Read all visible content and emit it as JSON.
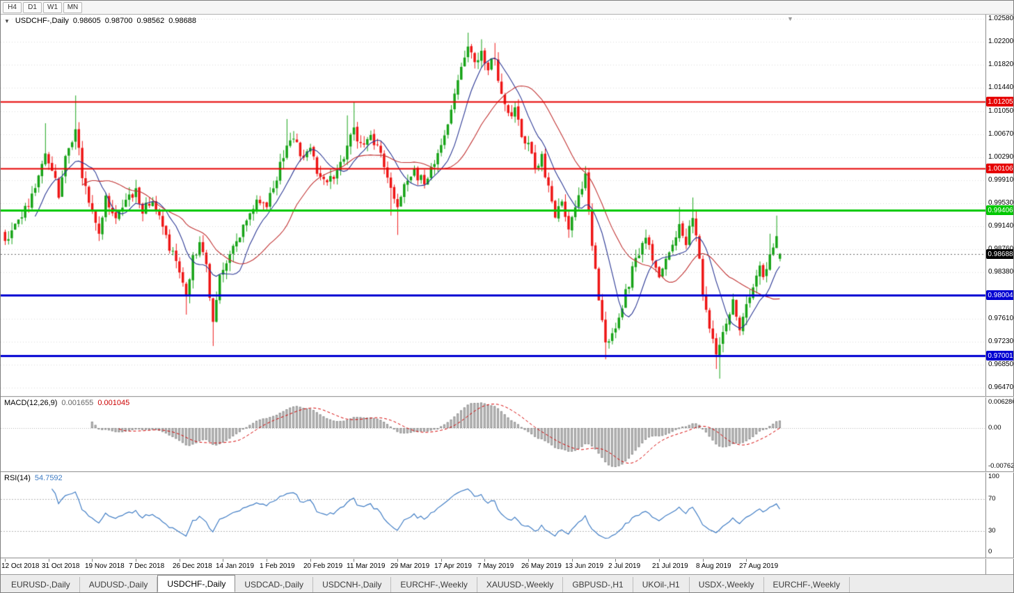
{
  "toolbar": {
    "timeframes": [
      "H4",
      "D1",
      "W1",
      "MN"
    ]
  },
  "chart": {
    "symbol_period": "USDCHF-,Daily",
    "open": "0.98605",
    "high": "0.98700",
    "low": "0.98562",
    "close": "0.98688"
  },
  "indicators": {
    "macd": {
      "name": "MACD(12,26,9)",
      "main_value": "0.001655",
      "signal_value": "0.001045",
      "axis_top": "0.006286",
      "axis_zero": "0.00",
      "axis_bottom": "-0.007620"
    },
    "rsi": {
      "name": "RSI(14)",
      "value": "54.7592",
      "axis_top": "100",
      "axis_upper": "70",
      "axis_lower": "30",
      "axis_bottom": "0"
    }
  },
  "price_axis": {
    "ticks": [
      "1.02580",
      "1.02200",
      "1.01820",
      "1.01440",
      "1.01050",
      "1.00670",
      "1.00290",
      "0.99910",
      "0.99530",
      "0.99140",
      "0.98760",
      "0.98380",
      "0.97990",
      "0.97610",
      "0.97230",
      "0.96850",
      "0.96470"
    ]
  },
  "date_axis": {
    "bars_per_label": 13,
    "labels": [
      "12 Oct 2018",
      "31 Oct 2018",
      "19 Nov 2018",
      "7 Dec 2018",
      "26 Dec 2018",
      "14 Jan 2019",
      "1 Feb 2019",
      "20 Feb 2019",
      "11 Mar 2019",
      "29 Mar 2019",
      "17 Apr 2019",
      "7 May 2019",
      "26 May 2019",
      "13 Jun 2019",
      "2 Jul 2019",
      "21 Jul 2019",
      "8 Aug 2019",
      "27 Aug 2019"
    ]
  },
  "tab_bar": {
    "tabs": [
      {
        "label": "EURUSD-,Daily",
        "active": false
      },
      {
        "label": "AUDUSD-,Daily",
        "active": false
      },
      {
        "label": "USDCHF-,Daily",
        "active": true
      },
      {
        "label": "USDCAD-,Daily",
        "active": false
      },
      {
        "label": "USDCNH-,Daily",
        "active": false
      },
      {
        "label": "EURCHF-,Weekly",
        "active": false
      },
      {
        "label": "XAUUSD-,Weekly",
        "active": false
      },
      {
        "label": "GBPUSD-,H1",
        "active": false
      },
      {
        "label": "UKOil-,H1",
        "active": false
      },
      {
        "label": "USDX-,Weekly",
        "active": false
      },
      {
        "label": "EURCHF-,Weekly",
        "active": false
      }
    ]
  },
  "chart_data": {
    "type": "candlestick",
    "symbol": "USDCHF",
    "timeframe": "Daily",
    "bar_count": 232,
    "price_range": {
      "max": 1.0258,
      "min": 0.9647
    },
    "last_bar": {
      "o": 0.98605,
      "h": 0.987,
      "l": 0.98562,
      "c": 0.98688
    },
    "colors": {
      "up": "#17a317",
      "down": "#ee1515",
      "ma_fast": "#283593",
      "ma_slow": "#c03030",
      "macd_hist_fill": "#c9c9c9",
      "macd_hist_stroke": "#8f8f8f",
      "macd_signal": "#d40000",
      "rsi_line": "#3f7cc4",
      "grid": "#d8d8d8"
    },
    "moving_averages": [
      {
        "period": 10
      },
      {
        "period": 24
      }
    ],
    "macd_params": {
      "fast": 12,
      "slow": 26,
      "signal": 9
    },
    "rsi_params": {
      "period": 14,
      "levels": [
        30,
        70
      ]
    },
    "levels": [
      {
        "price": 1.01205,
        "label": "1.01205",
        "color": "#e60000",
        "width": 2,
        "style": "solid",
        "is_current": false
      },
      {
        "price": 1.00106,
        "label": "1.00106",
        "color": "#e60000",
        "width": 2,
        "style": "solid",
        "is_current": false
      },
      {
        "price": 0.99406,
        "label": "0.99406",
        "color": "#00c800",
        "width": 3,
        "style": "solid",
        "is_current": false
      },
      {
        "price": 0.98004,
        "label": "0.98004",
        "color": "#0000d2",
        "width": 3,
        "style": "solid",
        "is_current": false
      },
      {
        "price": 0.97001,
        "label": "0.97001",
        "color": "#0000d2",
        "width": 3,
        "style": "solid",
        "is_current": false
      },
      {
        "price": 0.98688,
        "label": "0.98688",
        "color": "#000000",
        "width": 1,
        "style": "dotted",
        "is_current": true
      }
    ],
    "price_anchors": [
      [
        0,
        0.989
      ],
      [
        3,
        0.9915
      ],
      [
        6,
        0.9945
      ],
      [
        9,
        0.9975
      ],
      [
        12,
        1.0035,
        1.0085
      ],
      [
        14,
        1.001
      ],
      [
        16,
        0.9965
      ],
      [
        18,
        1.0025
      ],
      [
        21,
        1.0075,
        1.0131
      ],
      [
        23,
        1.0
      ],
      [
        26,
        0.9935
      ],
      [
        28,
        0.9902
      ],
      [
        30,
        0.9965
      ],
      [
        33,
        0.993
      ],
      [
        36,
        0.9958
      ],
      [
        39,
        0.9976
      ],
      [
        41,
        0.9938
      ],
      [
        44,
        0.9962
      ],
      [
        47,
        0.9906
      ],
      [
        50,
        0.9868
      ],
      [
        52,
        0.9832
      ],
      [
        54,
        0.9798,
        null,
        0.9768
      ],
      [
        56,
        0.9862
      ],
      [
        58,
        0.9882
      ],
      [
        60,
        0.9846
      ],
      [
        62,
        0.9756,
        null,
        0.9716
      ],
      [
        64,
        0.9838
      ],
      [
        66,
        0.9858
      ],
      [
        69,
        0.9886
      ],
      [
        72,
        0.9932
      ],
      [
        75,
        0.9958
      ],
      [
        78,
        0.9944
      ],
      [
        81,
        0.9998
      ],
      [
        84,
        1.0048,
        1.0092
      ],
      [
        86,
        1.0064
      ],
      [
        88,
        1.0028
      ],
      [
        91,
        1.0052
      ],
      [
        93,
        1.0002
      ],
      [
        96,
        0.9984
      ],
      [
        99,
        1.0006
      ],
      [
        102,
        1.0048,
        1.0098
      ],
      [
        104,
        1.0078,
        1.012
      ],
      [
        106,
        1.0044
      ],
      [
        109,
        1.0068
      ],
      [
        112,
        1.0028
      ],
      [
        115,
        0.9978,
        null,
        0.9932
      ],
      [
        117,
        0.9946,
        null,
        0.99
      ],
      [
        119,
        0.9976
      ],
      [
        122,
        1.0004
      ],
      [
        125,
        0.9986
      ],
      [
        128,
        1.0018
      ],
      [
        130,
        1.0042
      ],
      [
        133,
        1.0105
      ],
      [
        136,
        1.0175
      ],
      [
        138,
        1.0212,
        1.0235
      ],
      [
        140,
        1.0182
      ],
      [
        142,
        1.0205,
        1.0224
      ],
      [
        144,
        1.0178
      ],
      [
        146,
        1.0192,
        1.0218
      ],
      [
        148,
        1.0128
      ],
      [
        150,
        1.0094
      ],
      [
        152,
        1.0112
      ],
      [
        154,
        1.0058
      ],
      [
        156,
        1.0052
      ],
      [
        158,
        1.0008
      ],
      [
        160,
        1.0028
      ],
      [
        162,
        0.9976
      ],
      [
        164,
        0.9934
      ],
      [
        166,
        0.9956
      ],
      [
        168,
        0.9912
      ],
      [
        170,
        0.9942
      ],
      [
        172,
        0.9982
      ],
      [
        173,
        1.0002,
        1.0014
      ],
      [
        175,
        0.9888
      ],
      [
        177,
        0.9798
      ],
      [
        179,
        0.9722,
        null,
        0.9694
      ],
      [
        181,
        0.9742
      ],
      [
        183,
        0.9762
      ],
      [
        185,
        0.9802
      ],
      [
        187,
        0.9842
      ],
      [
        189,
        0.9868
      ],
      [
        191,
        0.9902
      ],
      [
        193,
        0.9862
      ],
      [
        195,
        0.9832
      ],
      [
        197,
        0.9856
      ],
      [
        199,
        0.9886
      ],
      [
        201,
        0.9918,
        0.9946
      ],
      [
        203,
        0.9888
      ],
      [
        205,
        0.9928,
        0.9962
      ],
      [
        207,
        0.9868
      ],
      [
        208,
        0.9802
      ],
      [
        210,
        0.9742
      ],
      [
        212,
        0.9702,
        null,
        0.9678
      ],
      [
        213,
        0.9718,
        null,
        0.9662
      ],
      [
        215,
        0.9758
      ],
      [
        217,
        0.9788
      ],
      [
        219,
        0.9748
      ],
      [
        221,
        0.9778
      ],
      [
        223,
        0.9816
      ],
      [
        225,
        0.9848
      ],
      [
        226,
        0.9826
      ],
      [
        228,
        0.9868,
        0.9902
      ],
      [
        230,
        0.9898,
        0.9932
      ],
      [
        231,
        0.98688
      ]
    ]
  }
}
